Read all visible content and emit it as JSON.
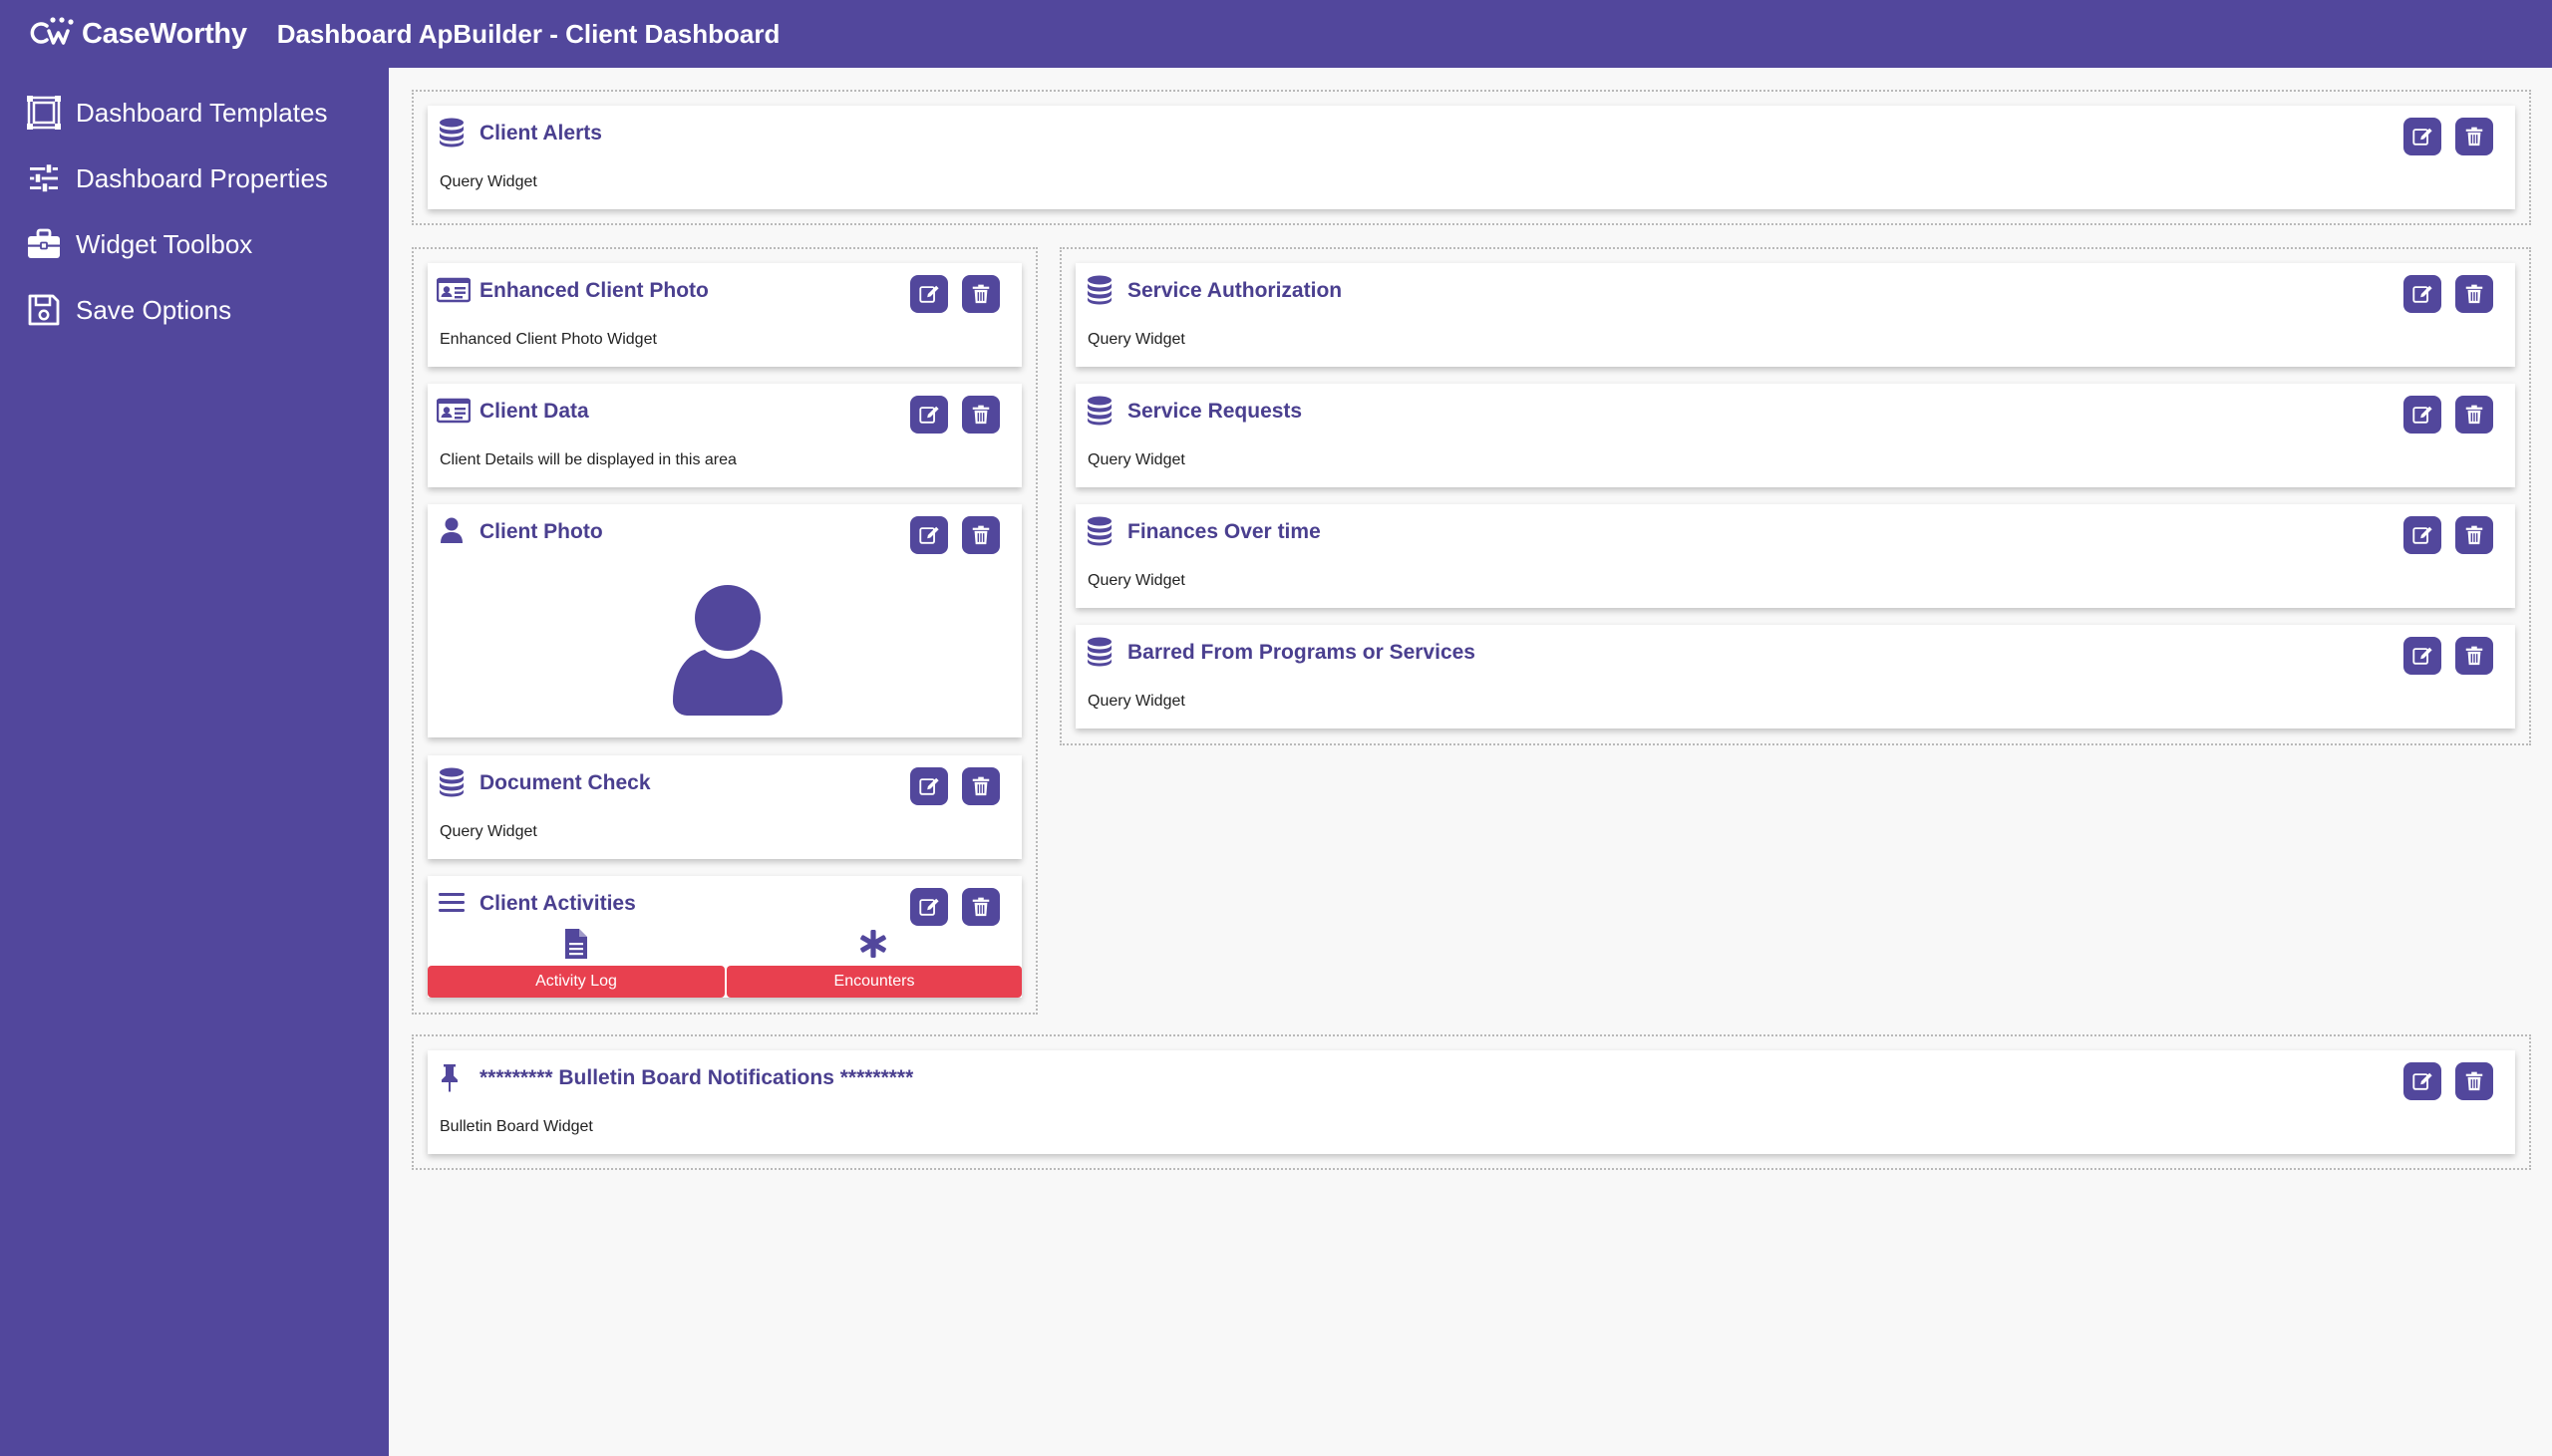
{
  "header": {
    "brand": "CaseWorthy",
    "title": "Dashboard ApBuilder - Client Dashboard"
  },
  "sidebar": {
    "items": [
      {
        "label": "Dashboard Templates",
        "icon": "template-icon"
      },
      {
        "label": "Dashboard Properties",
        "icon": "sliders-icon"
      },
      {
        "label": "Widget Toolbox",
        "icon": "toolbox-icon"
      },
      {
        "label": "Save Options",
        "icon": "floppy-disk-icon"
      }
    ]
  },
  "widgets": {
    "client_alerts": {
      "title": "Client Alerts",
      "subtitle": "Query Widget",
      "icon": "database-icon"
    },
    "enhanced_client_photo": {
      "title": "Enhanced Client Photo",
      "subtitle": "Enhanced Client Photo Widget",
      "icon": "id-card-icon"
    },
    "client_data": {
      "title": "Client Data",
      "subtitle": "Client Details will be displayed in this area",
      "icon": "id-card-icon"
    },
    "client_photo": {
      "title": "Client Photo",
      "icon": "user-icon"
    },
    "document_check": {
      "title": "Document Check",
      "subtitle": "Query Widget",
      "icon": "database-icon"
    },
    "client_activities": {
      "title": "Client Activities",
      "icon": "list-icon",
      "actions": [
        {
          "label": "Activity Log",
          "icon": "document-icon"
        },
        {
          "label": "Encounters",
          "icon": "asterisk-icon"
        }
      ]
    },
    "service_authorization": {
      "title": "Service Authorization",
      "subtitle": "Query Widget",
      "icon": "database-icon"
    },
    "service_requests": {
      "title": "Service Requests",
      "subtitle": "Query Widget",
      "icon": "database-icon"
    },
    "finances_over_time": {
      "title": "Finances Over time",
      "subtitle": "Query Widget",
      "icon": "database-icon"
    },
    "barred_from_programs": {
      "title": "Barred From Programs or Services",
      "subtitle": "Query Widget",
      "icon": "database-icon"
    },
    "bulletin_board": {
      "title": "********* Bulletin Board Notifications *********",
      "subtitle": "Bulletin Board Widget",
      "icon": "pushpin-icon"
    }
  },
  "colors": {
    "primary": "#52479c",
    "title_text": "#4a3f8f",
    "action_red": "#e8404f",
    "background": "#f8f8f8"
  }
}
